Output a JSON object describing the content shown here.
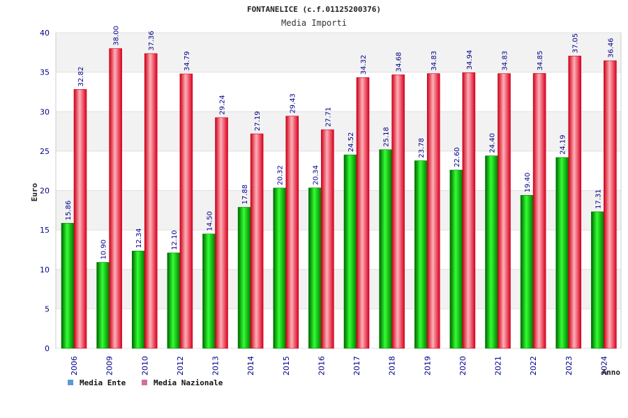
{
  "colors": {
    "ente": "#00b000",
    "nazionale": "#e8001c",
    "legend_ente": "#5b9bd5",
    "legend_nazionale": "#d070a0",
    "band": "#f2f2f2"
  },
  "chart_data": {
    "type": "bar",
    "title": "FONTANELICE (c.f.01125200376)",
    "subtitle": "Media Importi",
    "xlabel": "Anno",
    "ylabel": "Euro",
    "ylim": [
      0,
      40
    ],
    "yticks": [
      0,
      5,
      10,
      15,
      20,
      25,
      30,
      35,
      40
    ],
    "grid": true,
    "legend_position": "bottom-left",
    "categories": [
      "2006",
      "2009",
      "2010",
      "2012",
      "2013",
      "2014",
      "2015",
      "2016",
      "2017",
      "2018",
      "2019",
      "2020",
      "2021",
      "2022",
      "2023",
      "2024"
    ],
    "series": [
      {
        "name": "Media Ente",
        "values": [
          15.86,
          10.9,
          12.34,
          12.1,
          14.5,
          17.88,
          20.32,
          20.34,
          24.52,
          25.18,
          23.78,
          22.6,
          24.4,
          19.4,
          24.19,
          17.31
        ],
        "labels": [
          "15.86",
          "10.90",
          "12.34",
          "12.10",
          "14.50",
          "17.88",
          "20.32",
          "20.34",
          "24.52",
          "25.18",
          "23.78",
          "22.60",
          "24.40",
          "19.40",
          "24.19",
          "17.31"
        ]
      },
      {
        "name": "Media Nazionale",
        "values": [
          32.82,
          38.0,
          37.36,
          34.79,
          29.24,
          27.19,
          29.43,
          27.71,
          34.32,
          34.68,
          34.83,
          34.94,
          34.83,
          34.85,
          37.05,
          36.46
        ],
        "labels": [
          "32.82",
          "38.00",
          "37.36",
          "34.79",
          "29.24",
          "27.19",
          "29.43",
          "27.71",
          "34.32",
          "34.68",
          "34.83",
          "34.94",
          "34.83",
          "34.85",
          "37.05",
          "36.46"
        ]
      }
    ]
  }
}
